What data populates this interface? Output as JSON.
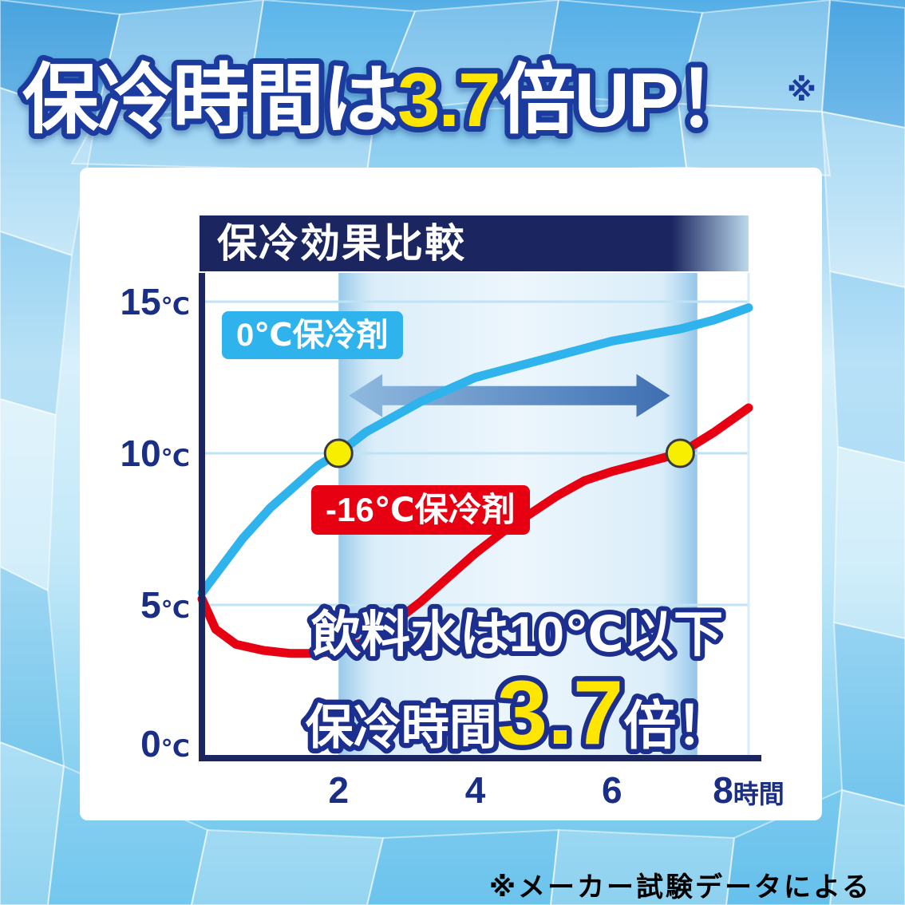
{
  "headline": {
    "part1": "保冷時間は",
    "highlight": "3.7",
    "part2": "倍UP！",
    "note_mark": "※"
  },
  "footnote": "※メーカー試験データによる",
  "colors": {
    "highlight_yellow": "#ffe600",
    "outline_blue": "#1d3a9e",
    "headline_fill": "#ffffff",
    "navy": "#1b2660",
    "axis_label_navy": "#1b2e85",
    "footnote_navy": "#1b2f8e",
    "gridline_blue": "#bfe3f4",
    "marker_outline": "#3a3a3a"
  },
  "chart_data": {
    "type": "line",
    "title": "保冷効果比較",
    "xlabel": "時間",
    "ylabel": "℃",
    "xlim": [
      0,
      8
    ],
    "ylim": [
      0,
      15
    ],
    "grid": "horizontal",
    "legend_position": "inline-labels",
    "accent_yellow": "#ffe600",
    "marker_fill": "#f7ee00",
    "x_ticks": [
      {
        "value": 2,
        "label": "2"
      },
      {
        "value": 4,
        "label": "4"
      },
      {
        "value": 6,
        "label": "6"
      },
      {
        "value": 8,
        "label": "8時間"
      }
    ],
    "y_ticks": [
      {
        "value": 0,
        "label": "0℃"
      },
      {
        "value": 5,
        "label": "5℃"
      },
      {
        "value": 10,
        "label": "10℃"
      },
      {
        "value": 15,
        "label": "15℃"
      }
    ],
    "series": [
      {
        "name": "0℃保冷剤",
        "color": "#2fb3ec",
        "x": [
          0,
          0.3,
          0.6,
          1,
          1.4,
          1.7,
          2,
          2.4,
          2.8,
          3.2,
          3.6,
          4,
          4.5,
          5,
          5.5,
          6,
          6.5,
          7,
          7.5,
          8
        ],
        "y": [
          5.4,
          6.3,
          7.2,
          8.2,
          9.0,
          9.6,
          10.0,
          10.7,
          11.2,
          11.7,
          12.1,
          12.5,
          12.8,
          13.1,
          13.4,
          13.7,
          13.9,
          14.1,
          14.4,
          14.8
        ]
      },
      {
        "name": "-16℃保冷剤",
        "color": "#e60012",
        "x": [
          0,
          0.2,
          0.5,
          0.9,
          1.3,
          1.7,
          2,
          2.4,
          2.8,
          3.2,
          3.6,
          4,
          4.4,
          4.8,
          5.2,
          5.6,
          6,
          6.5,
          7,
          7.5,
          8
        ],
        "y": [
          5.2,
          4.2,
          3.7,
          3.5,
          3.4,
          3.4,
          3.5,
          3.8,
          4.4,
          5.1,
          5.9,
          6.7,
          7.4,
          8.0,
          8.6,
          9.1,
          9.4,
          9.7,
          10.0,
          10.7,
          11.5
        ]
      }
    ],
    "markers": [
      {
        "x": 2,
        "y": 10
      },
      {
        "x": 7,
        "y": 10
      }
    ],
    "highlight_band": {
      "x_start": 2,
      "x_end": 7.25
    },
    "arrow": {
      "x_start": 2.15,
      "x_end": 6.85,
      "y": 11.9
    },
    "annotations": {
      "condition": "飲料水は10℃以下",
      "result_prefix": "保冷時間",
      "result_value": "3.7",
      "result_suffix": "倍！"
    }
  }
}
